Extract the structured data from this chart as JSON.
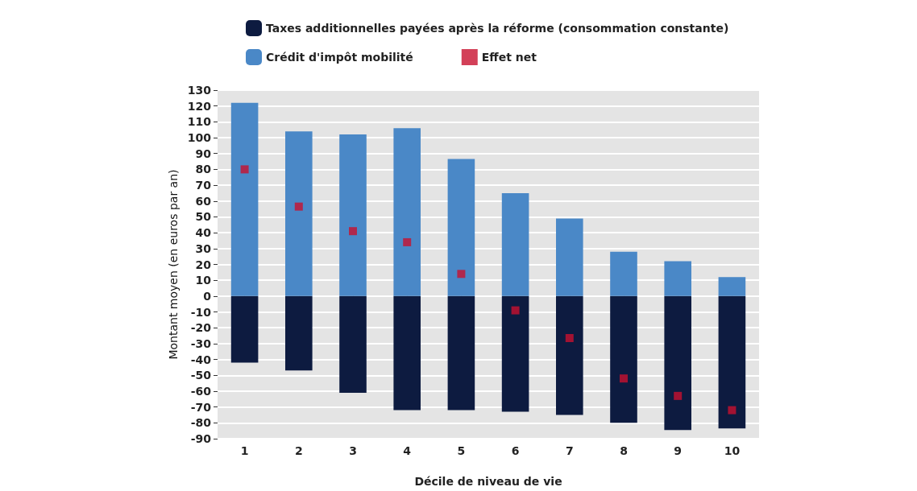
{
  "chart_data": {
    "type": "bar",
    "stacked": true,
    "xlabel": "Décile de niveau de vie",
    "ylabel": "Montant moyen (en euros par an)",
    "categories": [
      "1",
      "2",
      "3",
      "4",
      "5",
      "6",
      "7",
      "8",
      "9",
      "10"
    ],
    "series": [
      {
        "name": "Taxes additionnelles payées après la réforme (consommation constante)",
        "color": "#0d1b40",
        "values": [
          -42,
          -47,
          -61,
          -72,
          -72,
          -73,
          -75,
          -80,
          -84.5,
          -83.5
        ]
      },
      {
        "name": "Crédit d'impôt mobilité",
        "color": "#4a88c7",
        "values": [
          122,
          104,
          102,
          106,
          86.5,
          65,
          49,
          28,
          22,
          12
        ]
      },
      {
        "name": "Effet net",
        "type": "scatter",
        "color": "#c8102e",
        "values": [
          80,
          56.5,
          41,
          34,
          14,
          -9,
          -26.5,
          -52,
          -63,
          -72
        ]
      }
    ],
    "ylim": [
      -90,
      130
    ],
    "yticks": [
      -90,
      -80,
      -70,
      -60,
      -50,
      -40,
      -30,
      -20,
      -10,
      0,
      10,
      20,
      30,
      40,
      50,
      60,
      70,
      80,
      90,
      100,
      110,
      120,
      130
    ],
    "grid": "y",
    "legend": "top",
    "marker": "square"
  }
}
